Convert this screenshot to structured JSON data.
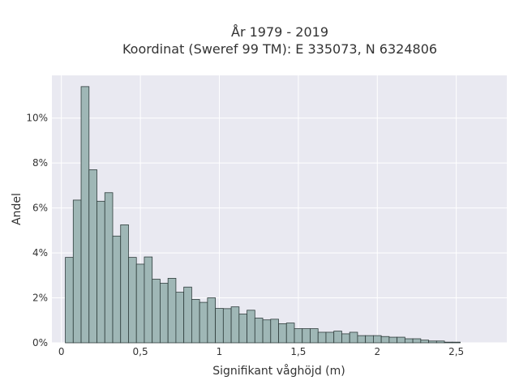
{
  "chart_data": {
    "type": "bar",
    "title": "År 1979 - 2019",
    "subtitle": "Koordinat (Sweref 99 TM): E 335073, N 6324806",
    "xlabel": "Signifikant våghöjd (m)",
    "ylabel": "Andel",
    "bin_width": 0.05,
    "bin_start": 0.025,
    "xlim": [
      -0.06,
      2.82
    ],
    "ylim": [
      0,
      0.119
    ],
    "x_ticks": [
      0,
      0.5,
      1,
      1.5,
      2,
      2.5
    ],
    "x_tick_labels": [
      "0",
      "0,5",
      "1",
      "1,5",
      "2",
      "2,5"
    ],
    "y_ticks": [
      0,
      0.02,
      0.04,
      0.06,
      0.08,
      0.1
    ],
    "y_tick_labels": [
      "0%",
      "2%",
      "4%",
      "6%",
      "8%",
      "10%"
    ],
    "values": [
      0.038,
      0.0635,
      0.114,
      0.077,
      0.063,
      0.0668,
      0.0475,
      0.0525,
      0.038,
      0.035,
      0.0382,
      0.0283,
      0.0265,
      0.0287,
      0.0225,
      0.0248,
      0.0193,
      0.018,
      0.02,
      0.0153,
      0.0152,
      0.016,
      0.0128,
      0.0145,
      0.011,
      0.0102,
      0.0105,
      0.0085,
      0.0088,
      0.0063,
      0.0063,
      0.0063,
      0.0047,
      0.0047,
      0.0052,
      0.004,
      0.0047,
      0.0032,
      0.0032,
      0.0032,
      0.0028,
      0.0025,
      0.0025,
      0.0018,
      0.0018,
      0.0012,
      0.0008,
      0.0008,
      0.0003,
      0.0003
    ],
    "grid": true,
    "colors": {
      "bar_fill": "#9fb7b6",
      "bar_edge": "#2f3d3c",
      "plot_bg": "#e9e9f1",
      "grid": "#ffffff"
    }
  }
}
